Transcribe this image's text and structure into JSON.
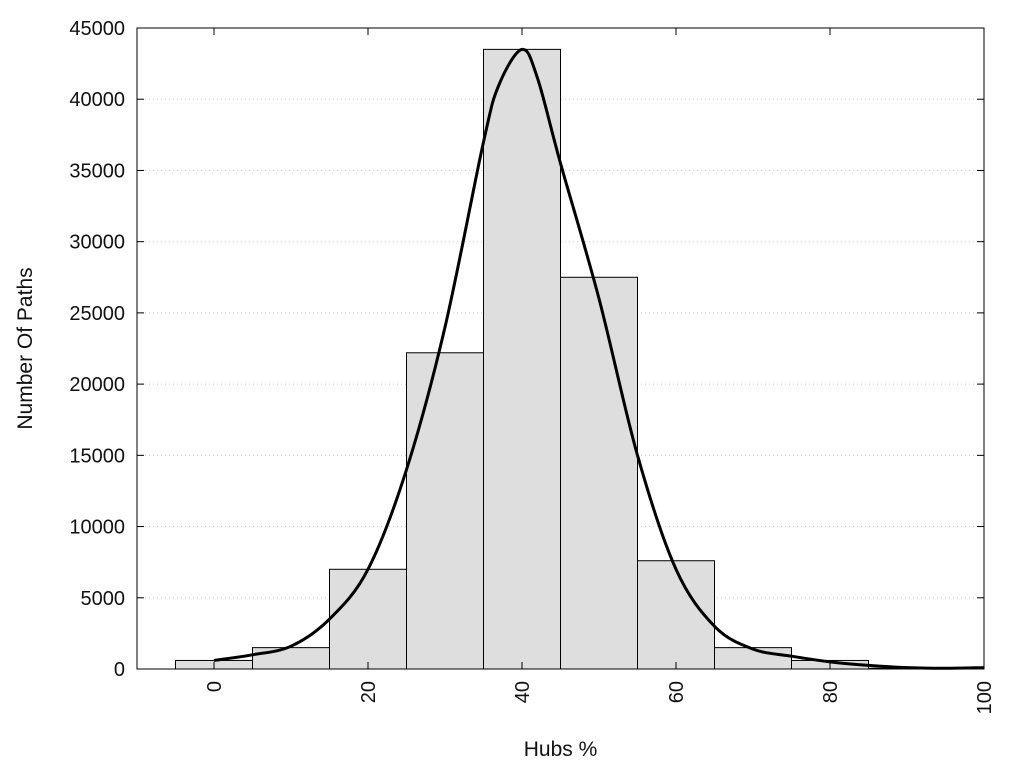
{
  "chart_data": {
    "type": "bar",
    "subtype": "histogram-with-density-curve",
    "title": "",
    "xlabel": "Hubs %",
    "ylabel": "Number Of Paths",
    "xlim": [
      -10,
      100
    ],
    "ylim": [
      0,
      45000
    ],
    "x_ticks": [
      0,
      20,
      40,
      60,
      80,
      100
    ],
    "y_ticks": [
      0,
      5000,
      10000,
      15000,
      20000,
      25000,
      30000,
      35000,
      40000,
      45000
    ],
    "grid": "horizontal-dotted",
    "bar_color": "#dedede",
    "bar_edge_color": "#000000",
    "bins": [
      {
        "x0": -5,
        "x1": 5,
        "value": 600
      },
      {
        "x0": 5,
        "x1": 15,
        "value": 1500
      },
      {
        "x0": 15,
        "x1": 25,
        "value": 7000
      },
      {
        "x0": 25,
        "x1": 35,
        "value": 22200
      },
      {
        "x0": 35,
        "x1": 45,
        "value": 43500
      },
      {
        "x0": 45,
        "x1": 55,
        "value": 27500
      },
      {
        "x0": 55,
        "x1": 65,
        "value": 7600
      },
      {
        "x0": 65,
        "x1": 75,
        "value": 1500
      },
      {
        "x0": 75,
        "x1": 85,
        "value": 600
      },
      {
        "x0": 85,
        "x1": 95,
        "value": 50
      },
      {
        "x0": 95,
        "x1": 105,
        "value": 100
      }
    ],
    "curve": {
      "color": "#000000",
      "x": [
        0,
        5,
        10,
        15,
        20,
        25,
        30,
        35,
        37,
        40,
        42,
        45,
        50,
        55,
        60,
        65,
        70,
        75,
        80,
        85,
        90,
        95,
        100
      ],
      "y": [
        600,
        1000,
        1600,
        3500,
        7000,
        14000,
        24000,
        37000,
        41000,
        43500,
        41500,
        35500,
        26000,
        15000,
        7000,
        3000,
        1400,
        900,
        500,
        250,
        100,
        50,
        100
      ]
    }
  }
}
